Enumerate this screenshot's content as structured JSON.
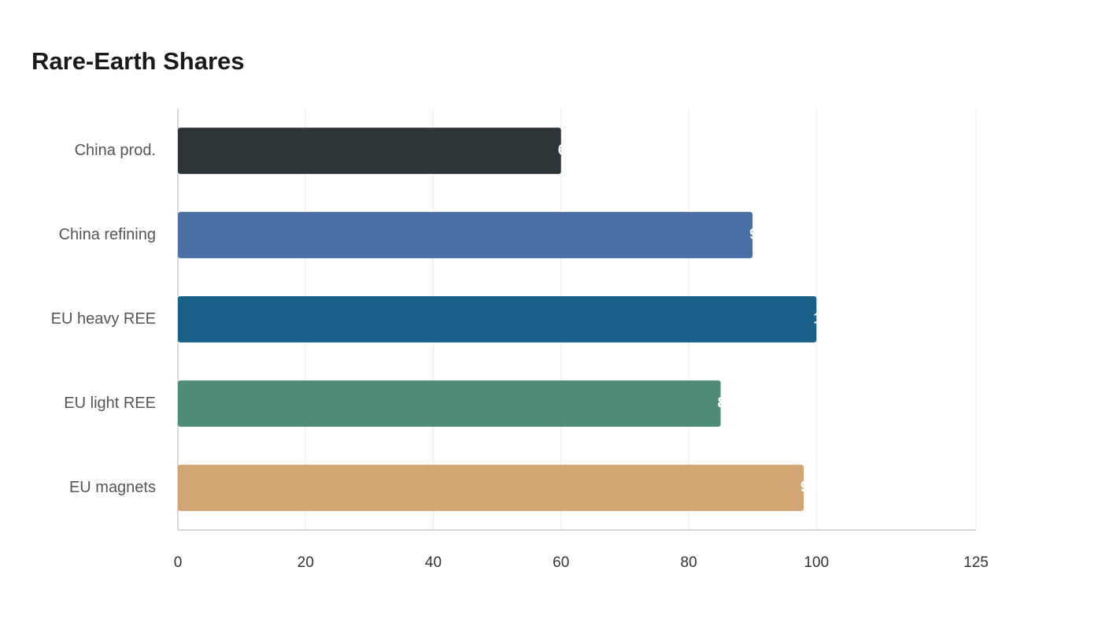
{
  "chart_data": {
    "type": "bar",
    "orientation": "horizontal",
    "title": "Rare-Earth Shares",
    "categories": [
      "China prod.",
      "China refining",
      "EU heavy REE",
      "EU light REE",
      "EU magnets"
    ],
    "values": [
      60,
      90,
      100,
      85,
      98
    ],
    "colors": [
      "#2d3538",
      "#4a6fa5",
      "#1a6189",
      "#4f8c7a",
      "#d4a574"
    ],
    "xlim": [
      0,
      125
    ],
    "xticks": [
      0,
      20,
      40,
      60,
      80,
      100,
      125
    ],
    "grid": true
  }
}
